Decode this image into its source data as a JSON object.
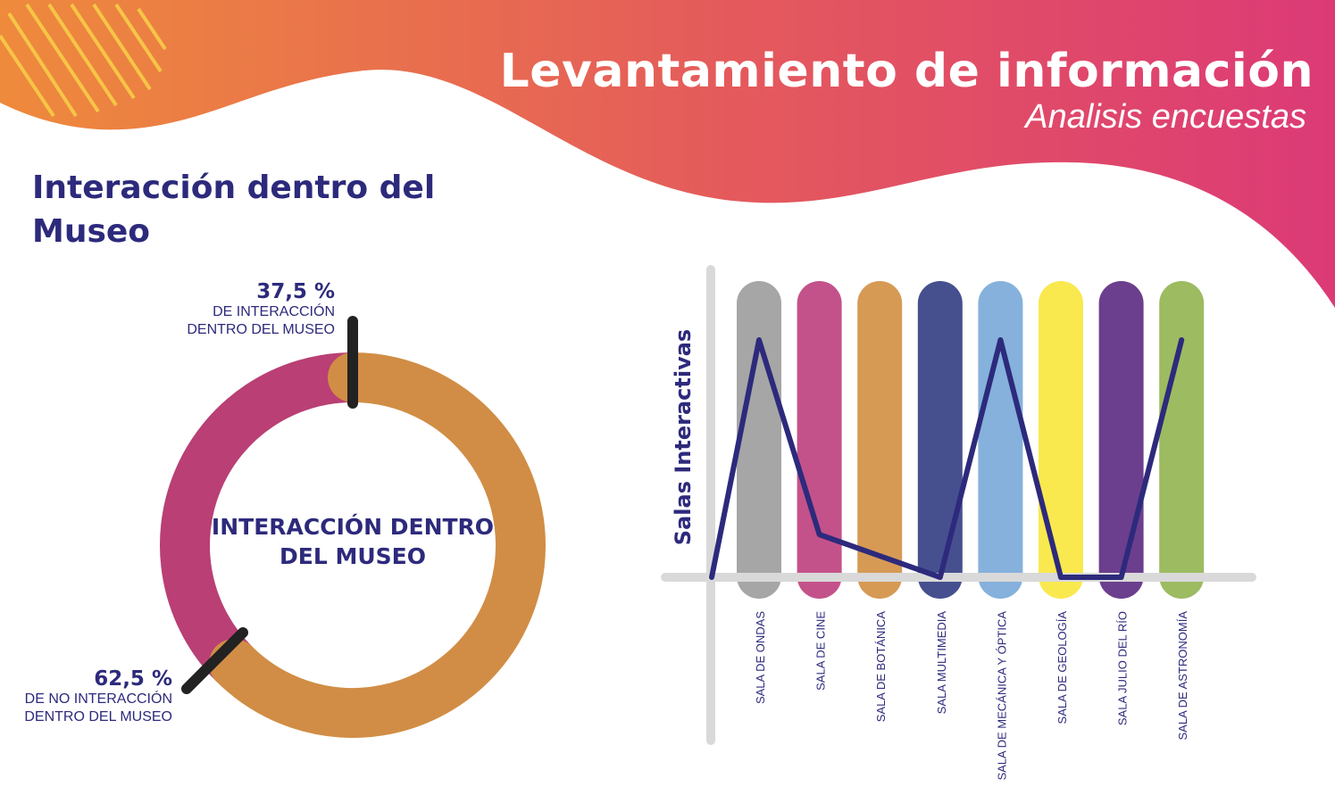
{
  "header": {
    "title": "Levantamiento de información",
    "subtitle": "Analisis encuestas",
    "gradient_colors": [
      "#ee8a3c",
      "#dc3a76"
    ]
  },
  "section": {
    "title": "Interacción dentro del Museo"
  },
  "chart_data": [
    {
      "type": "pie",
      "variant": "donut",
      "center_label": "INTERACCIÓN DENTRO DEL MUSEO",
      "slices": [
        {
          "value": 37.5,
          "label_value": "37,5 %",
          "label": "DE INTERACCIÓN DENTRO DEL MUSEO",
          "color": "#b93f74"
        },
        {
          "value": 62.5,
          "label_value": "62,5 %",
          "label": "DE NO INTERACCIÓN DENTRO DEL MUSEO",
          "color": "#d18d45"
        }
      ]
    },
    {
      "type": "line",
      "ylabel": "Salas Interactivas",
      "ylim": [
        0,
        100
      ],
      "grid": false,
      "categories": [
        "SALA DE ONDAS",
        "SALA DE CINE",
        "SALA DE BOTÁNICA",
        "SALA MULTIMEDIA",
        "SALA DE MECÁNICA Y ÓPTICA",
        "SALA DE GEOLOGÍA",
        "SALA JULIO DEL RÍO",
        "SALA DE ASTRONOMÍA"
      ],
      "category_colors": [
        "#a6a6a6",
        "#c4528a",
        "#d69a55",
        "#46508f",
        "#85b1dc",
        "#f9e94e",
        "#6b3f8e",
        "#9dbb61"
      ],
      "start_value": 0,
      "values": [
        100,
        18,
        9,
        0,
        100,
        0,
        0,
        100
      ],
      "line_color": "#2d2a7c"
    }
  ]
}
